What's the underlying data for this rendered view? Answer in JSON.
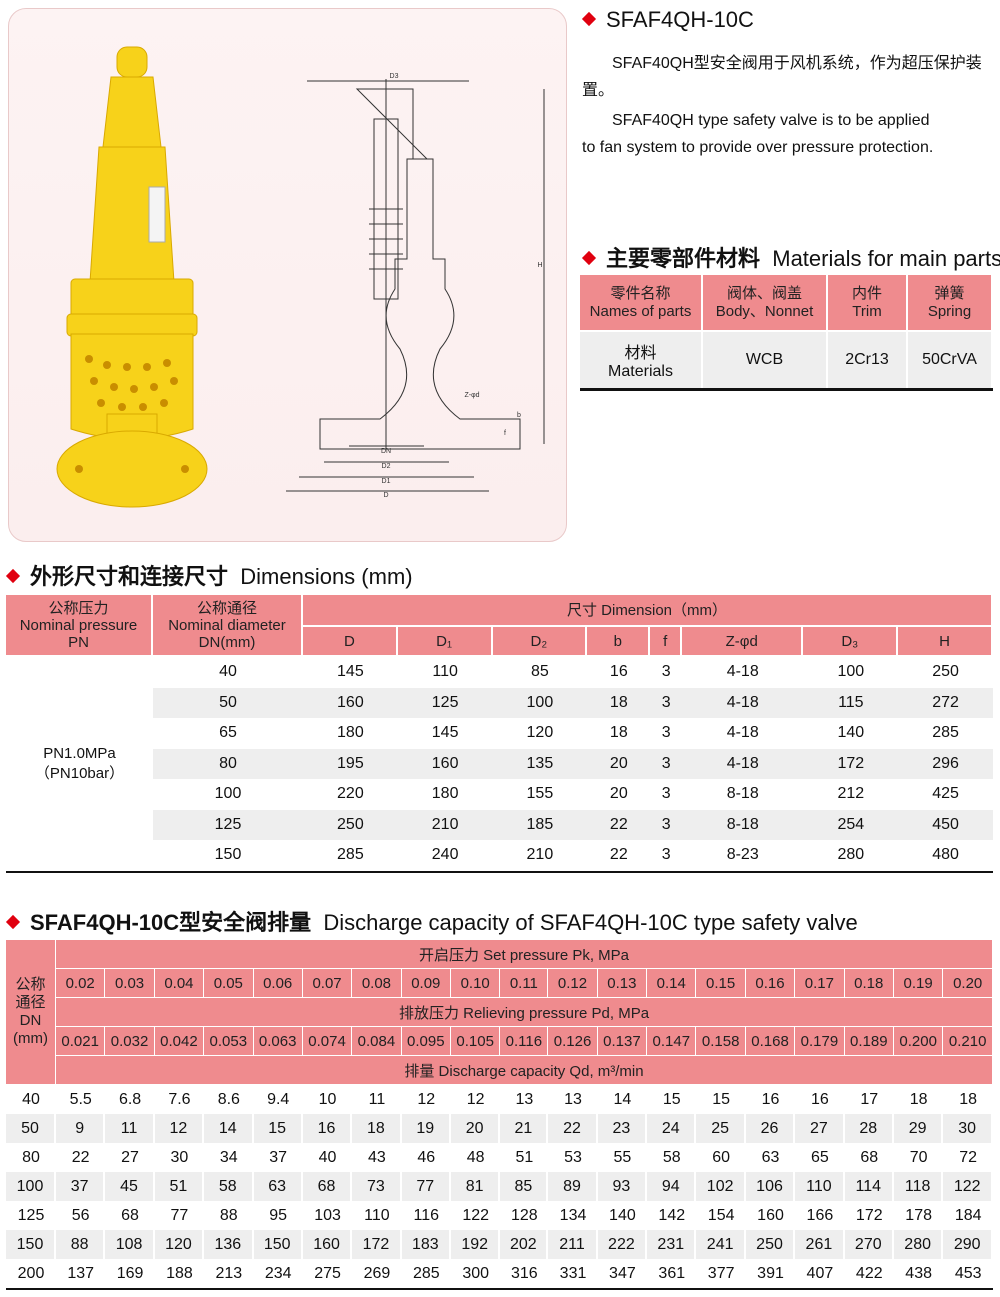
{
  "product": {
    "title": "SFAF4QH-10C",
    "desc_cn": "SFAF40QH型安全阀用于风机系统，作为超压保护装置。",
    "desc_en_1": "SFAF40QH type safety valve is to be applied",
    "desc_en_2": "to fan system  to provide over pressure protection."
  },
  "drawing": {
    "labels": {
      "d3": "D3",
      "h": "H",
      "dn": "DN",
      "d2": "D2",
      "d1": "D1",
      "d": "D",
      "z": "Z-φd",
      "b": "b",
      "f": "f"
    }
  },
  "colors": {
    "accent": "#e0000f",
    "header_pink": "#ef8b8e",
    "valve_yellow": "#f7d21a",
    "row_gray": "#eeeeee"
  },
  "materials": {
    "heading_cn": "主要零部件材料",
    "heading_en": "Materials for main parts",
    "headers": [
      {
        "cn": "零件名称",
        "en": "Names of parts"
      },
      {
        "cn": "阀体、阀盖",
        "en": "Body、Nonnet"
      },
      {
        "cn": "内件",
        "en": "Trim"
      },
      {
        "cn": "弹簧",
        "en": "Spring"
      }
    ],
    "row": {
      "cn": "材料",
      "en": "Materials",
      "values": [
        "WCB",
        "2Cr13",
        "50CrVA"
      ]
    }
  },
  "dimensions": {
    "heading_cn": "外形尺寸和连接尺寸",
    "heading_en": "Dimensions (mm)",
    "pn_header": {
      "cn": "公称压力",
      "en": "Nominal pressure",
      "sub": "PN"
    },
    "dn_header": {
      "cn": "公称通径",
      "en": "Nominal diameter",
      "sub": "DN(mm)"
    },
    "group_header": "尺寸 Dimension（mm）",
    "columns": [
      "D",
      "D₁",
      "D₂",
      "b",
      "f",
      "Z-φd",
      "D₃",
      "H"
    ],
    "pn_value_1": "PN1.0MPa",
    "pn_value_2": "（PN10bar）",
    "rows": [
      {
        "dn": "40",
        "values": [
          "145",
          "110",
          "85",
          "16",
          "3",
          "4-18",
          "100",
          "250"
        ]
      },
      {
        "dn": "50",
        "values": [
          "160",
          "125",
          "100",
          "18",
          "3",
          "4-18",
          "115",
          "272"
        ]
      },
      {
        "dn": "65",
        "values": [
          "180",
          "145",
          "120",
          "18",
          "3",
          "4-18",
          "140",
          "285"
        ]
      },
      {
        "dn": "80",
        "values": [
          "195",
          "160",
          "135",
          "20",
          "3",
          "4-18",
          "172",
          "296"
        ]
      },
      {
        "dn": "100",
        "values": [
          "220",
          "180",
          "155",
          "20",
          "3",
          "8-18",
          "212",
          "425"
        ]
      },
      {
        "dn": "125",
        "values": [
          "250",
          "210",
          "185",
          "22",
          "3",
          "8-18",
          "254",
          "450"
        ]
      },
      {
        "dn": "150",
        "values": [
          "285",
          "240",
          "210",
          "22",
          "3",
          "8-23",
          "280",
          "480"
        ]
      }
    ]
  },
  "discharge": {
    "heading_cn": "SFAF4QH-10C型安全阀排量",
    "heading_en": "Discharge capacity of SFAF4QH-10C type safety valve",
    "dn_header_cn_1": "公称",
    "dn_header_cn_2": "通径",
    "dn_header_en": "DN",
    "dn_header_unit": "(mm)",
    "set_pressure_label": "开启压力 Set pressure    Pk,  MPa",
    "set_pressures": [
      "0.02",
      "0.03",
      "0.04",
      "0.05",
      "0.06",
      "0.07",
      "0.08",
      "0.09",
      "0.10",
      "0.11",
      "0.12",
      "0.13",
      "0.14",
      "0.15",
      "0.16",
      "0.17",
      "0.18",
      "0.19",
      "0.20"
    ],
    "relieving_label": "排放压力  Relieving pressure    Pd,  MPa",
    "relieving_pressures": [
      "0.021",
      "0.032",
      "0.042",
      "0.053",
      "0.063",
      "0.074",
      "0.084",
      "0.095",
      "0.105",
      "0.116",
      "0.126",
      "0.137",
      "0.147",
      "0.158",
      "0.168",
      "0.179",
      "0.189",
      "0.200",
      "0.210"
    ],
    "capacity_label": "排量  Discharge capacity     Qd,  m³/min",
    "rows": [
      {
        "dn": "40",
        "values": [
          "5.5",
          "6.8",
          "7.6",
          "8.6",
          "9.4",
          "10",
          "11",
          "12",
          "12",
          "13",
          "13",
          "14",
          "15",
          "15",
          "16",
          "16",
          "17",
          "18",
          "18"
        ]
      },
      {
        "dn": "50",
        "values": [
          "9",
          "11",
          "12",
          "14",
          "15",
          "16",
          "18",
          "19",
          "20",
          "21",
          "22",
          "23",
          "24",
          "25",
          "26",
          "27",
          "28",
          "29",
          "30"
        ]
      },
      {
        "dn": "80",
        "values": [
          "22",
          "27",
          "30",
          "34",
          "37",
          "40",
          "43",
          "46",
          "48",
          "51",
          "53",
          "55",
          "58",
          "60",
          "63",
          "65",
          "68",
          "70",
          "72"
        ]
      },
      {
        "dn": "100",
        "values": [
          "37",
          "45",
          "51",
          "58",
          "63",
          "68",
          "73",
          "77",
          "81",
          "85",
          "89",
          "93",
          "94",
          "102",
          "106",
          "110",
          "114",
          "118",
          "122"
        ]
      },
      {
        "dn": "125",
        "values": [
          "56",
          "68",
          "77",
          "88",
          "95",
          "103",
          "110",
          "116",
          "122",
          "128",
          "134",
          "140",
          "142",
          "154",
          "160",
          "166",
          "172",
          "178",
          "184"
        ]
      },
      {
        "dn": "150",
        "values": [
          "88",
          "108",
          "120",
          "136",
          "150",
          "160",
          "172",
          "183",
          "192",
          "202",
          "211",
          "222",
          "231",
          "241",
          "250",
          "261",
          "270",
          "280",
          "290"
        ]
      },
      {
        "dn": "200",
        "values": [
          "137",
          "169",
          "188",
          "213",
          "234",
          "275",
          "269",
          "285",
          "300",
          "316",
          "331",
          "347",
          "361",
          "377",
          "391",
          "407",
          "422",
          "438",
          "453"
        ]
      }
    ]
  }
}
